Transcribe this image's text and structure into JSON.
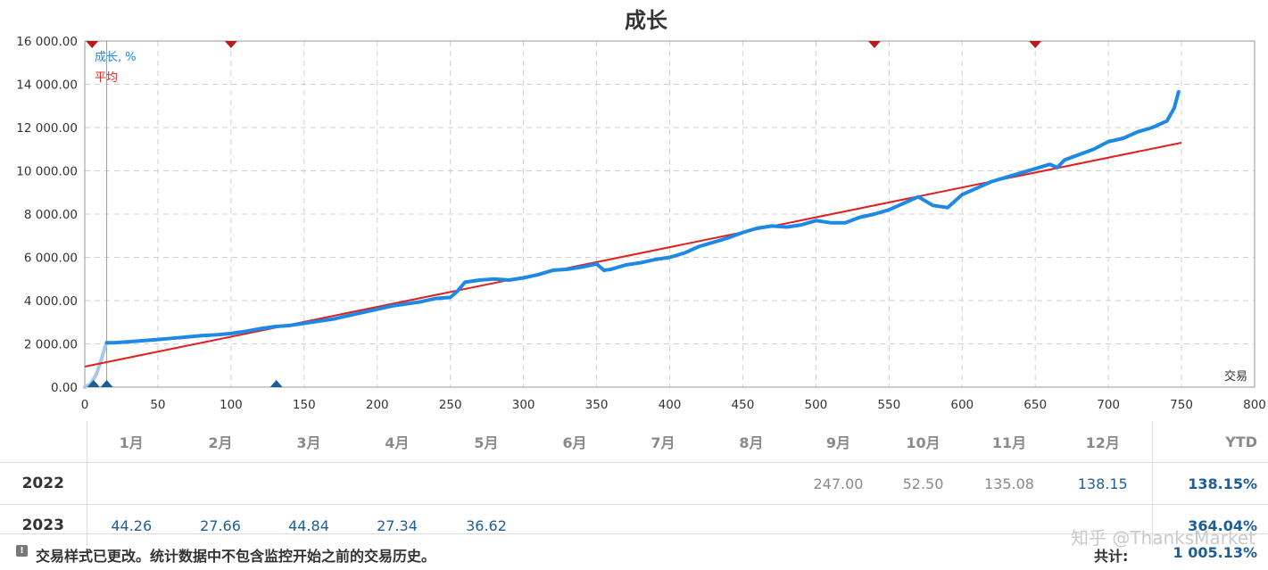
{
  "chart_data": {
    "type": "line",
    "title": "成长",
    "xlabel": "交易",
    "ylabel": "",
    "xlim": [
      0,
      800
    ],
    "ylim": [
      0,
      16000
    ],
    "x_ticks": [
      0,
      50,
      100,
      150,
      200,
      250,
      300,
      350,
      400,
      450,
      500,
      550,
      600,
      650,
      700,
      750,
      800
    ],
    "x_tick_labels": [
      "0",
      "50",
      "100",
      "150",
      "200",
      "250",
      "300",
      "350",
      "400",
      "450",
      "500",
      "550",
      "600",
      "650",
      "700",
      "750",
      "800"
    ],
    "y_ticks": [
      0,
      2000,
      4000,
      6000,
      8000,
      10000,
      12000,
      14000,
      16000
    ],
    "y_tick_labels": [
      "0.00",
      "2 000.00",
      "4 000.00",
      "6 000.00",
      "8 000.00",
      "10 000.00",
      "12 000.00",
      "14 000.00",
      "16 000.00"
    ],
    "grid": true,
    "legend_position": "top-left",
    "series": [
      {
        "name": "成长, %",
        "color": "#1e88e5",
        "pre_monitoring": {
          "color": "#a9c8e6",
          "x": [
            0,
            4,
            8,
            11,
            14,
            15
          ],
          "y": [
            0,
            150,
            600,
            1200,
            1900,
            2050
          ]
        },
        "x": [
          15,
          20,
          30,
          40,
          50,
          60,
          70,
          80,
          90,
          100,
          110,
          120,
          130,
          140,
          145,
          150,
          160,
          170,
          180,
          190,
          200,
          210,
          220,
          230,
          240,
          250,
          255,
          260,
          270,
          280,
          290,
          300,
          310,
          320,
          330,
          340,
          350,
          355,
          360,
          370,
          380,
          390,
          400,
          410,
          420,
          430,
          440,
          450,
          460,
          470,
          480,
          490,
          500,
          510,
          520,
          530,
          540,
          550,
          560,
          570,
          580,
          590,
          595,
          600,
          610,
          620,
          630,
          640,
          650,
          660,
          665,
          670,
          680,
          690,
          700,
          710,
          720,
          730,
          740,
          745,
          748
        ],
        "y": [
          2050,
          2050,
          2100,
          2150,
          2200,
          2260,
          2320,
          2380,
          2420,
          2480,
          2580,
          2700,
          2800,
          2850,
          2900,
          2950,
          3050,
          3150,
          3300,
          3450,
          3600,
          3750,
          3850,
          3950,
          4100,
          4150,
          4450,
          4850,
          4950,
          5000,
          4950,
          5050,
          5200,
          5400,
          5450,
          5550,
          5700,
          5400,
          5450,
          5650,
          5750,
          5900,
          6000,
          6200,
          6500,
          6700,
          6900,
          7150,
          7350,
          7450,
          7400,
          7500,
          7700,
          7600,
          7600,
          7850,
          8000,
          8200,
          8500,
          8800,
          8400,
          8300,
          8600,
          8900,
          9200,
          9500,
          9700,
          9900,
          10100,
          10300,
          10150,
          10500,
          10750,
          11000,
          11350,
          11500,
          11800,
          12000,
          12300,
          12900,
          13650
        ]
      },
      {
        "name": "平均",
        "color": "#e01f1f",
        "x": [
          0,
          750
        ],
        "y": [
          950,
          11300
        ]
      }
    ],
    "top_markers": {
      "color": "#b71c1c",
      "x": [
        5,
        100,
        540,
        650
      ]
    },
    "bottom_markers": {
      "color": "#1d5e96",
      "x": [
        6,
        15,
        131
      ]
    },
    "monitor_start_x": 15
  },
  "table": {
    "months": [
      "1月",
      "2月",
      "3月",
      "4月",
      "5月",
      "6月",
      "7月",
      "8月",
      "9月",
      "10月",
      "11月",
      "12月"
    ],
    "ytd_label": "YTD",
    "rows": [
      {
        "year": "2022",
        "values": [
          "",
          "",
          "",
          "",
          "",
          "",
          "",
          "",
          "247.00",
          "52.50",
          "135.08",
          "138.15"
        ],
        "value_styles": [
          "",
          "",
          "",
          "",
          "",
          "",
          "",
          "",
          "gray",
          "gray",
          "gray",
          "blue"
        ],
        "ytd": "138.15%"
      },
      {
        "year": "2023",
        "values": [
          "44.26",
          "27.66",
          "44.84",
          "27.34",
          "36.62",
          "",
          "",
          "",
          "",
          "",
          "",
          ""
        ],
        "value_styles": [
          "blue",
          "blue",
          "blue",
          "blue",
          "blue",
          "",
          "",
          "",
          "",
          "",
          "",
          ""
        ],
        "ytd": "364.04%"
      }
    ]
  },
  "footer": {
    "note": "交易样式已更改。统计数据中不包含监控开始之前的交易历史。",
    "total_label": "共计:",
    "total_value": "1 005.13%",
    "watermark": "知乎 @ThanksMarket"
  }
}
